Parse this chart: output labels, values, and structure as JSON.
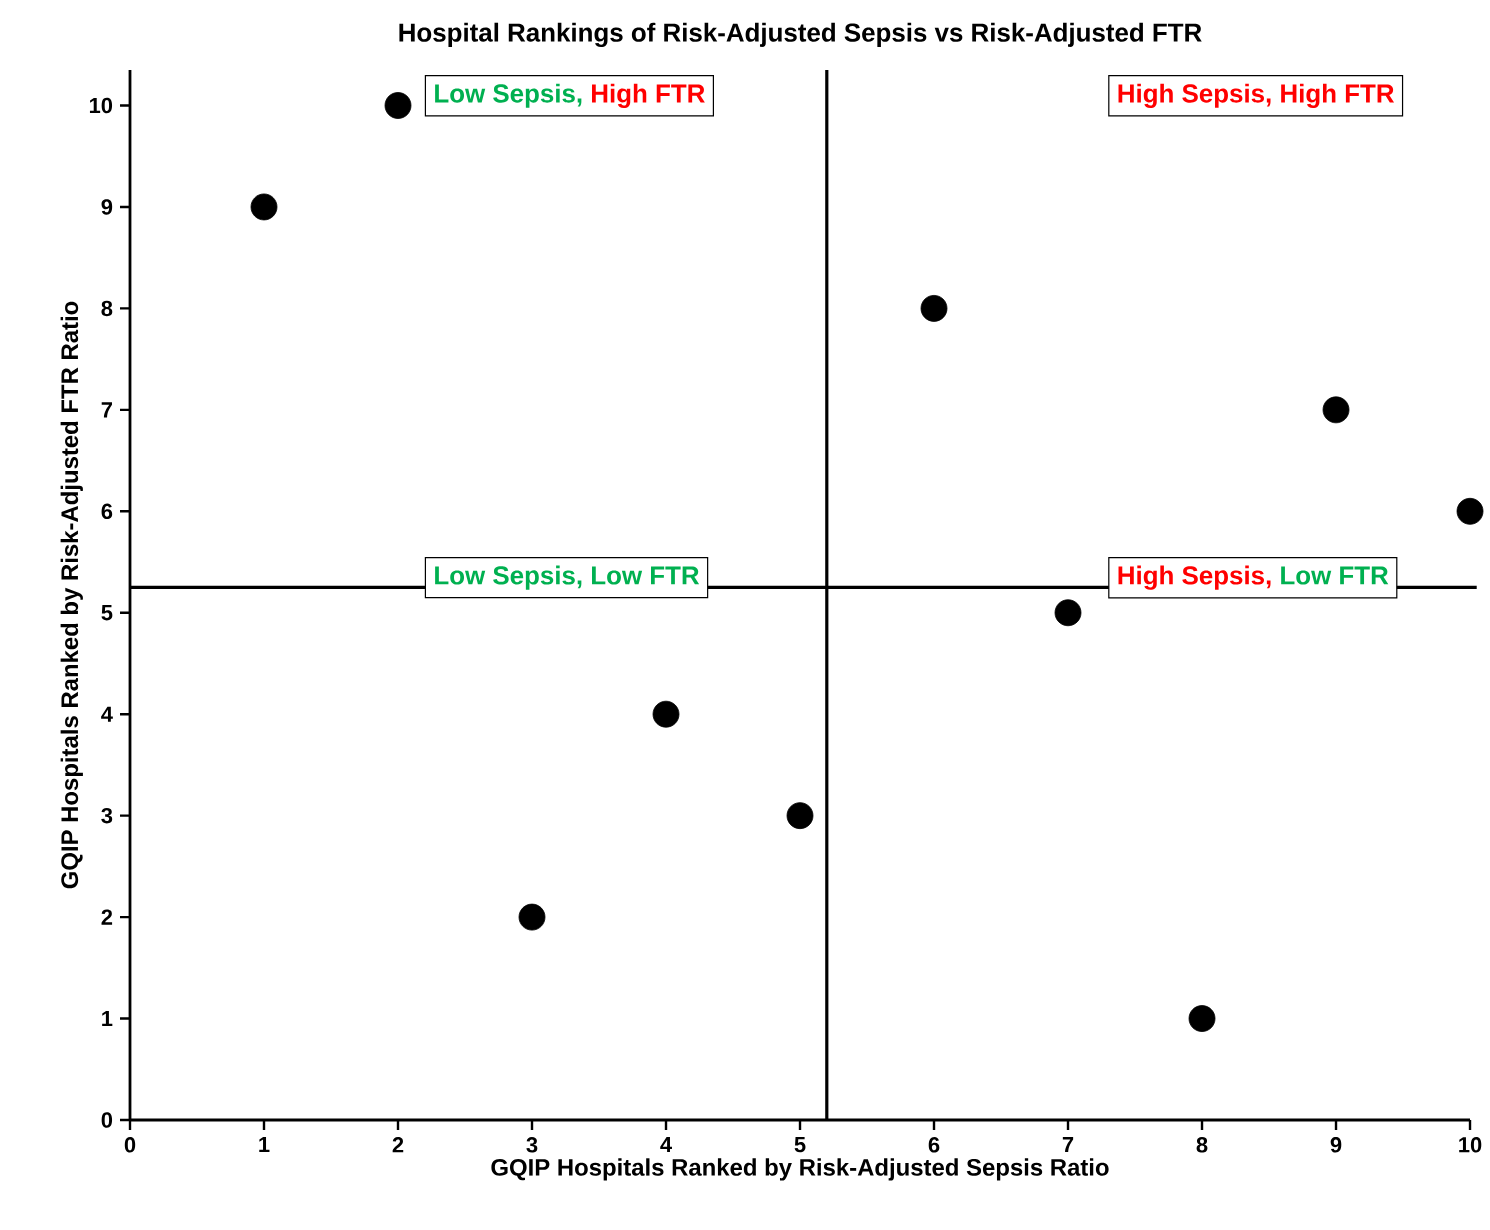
{
  "chart_data": {
    "type": "scatter",
    "title": "Hospital Rankings of Risk-Adjusted Sepsis vs Risk-Adjusted FTR",
    "xlabel": "GQIP Hospitals Ranked by Risk-Adjusted Sepsis Ratio",
    "ylabel": "GQIP Hospitals Ranked by Risk-Adjusted FTR Ratio",
    "x": [
      1,
      2,
      3,
      4,
      5,
      6,
      7,
      8,
      9,
      10
    ],
    "values": [
      9,
      10,
      2,
      4,
      3,
      8,
      5,
      1,
      7,
      6
    ],
    "color": "#000000",
    "marker": "circle",
    "xlim": [
      0,
      10
    ],
    "ylim": [
      0,
      10.35
    ],
    "xticks": [
      0,
      1,
      2,
      3,
      4,
      5,
      6,
      7,
      8,
      9,
      10
    ],
    "yticks": [
      0,
      1,
      2,
      3,
      4,
      5,
      6,
      7,
      8,
      9,
      10
    ],
    "grid": false,
    "legend": false,
    "ref_lines": [
      {
        "axis": "x",
        "value": 5.2,
        "color": "#000000",
        "line_style": "solid"
      },
      {
        "axis": "y",
        "value": 5.25,
        "color": "#000000",
        "line_style": "solid"
      }
    ],
    "annotations": [
      "Low Sepsis,",
      "High FTR",
      "High Sepsis,",
      "High FTR",
      "Low Sepsis,",
      "Low FTR",
      "High Sepsis,",
      "Low FTR"
    ]
  }
}
